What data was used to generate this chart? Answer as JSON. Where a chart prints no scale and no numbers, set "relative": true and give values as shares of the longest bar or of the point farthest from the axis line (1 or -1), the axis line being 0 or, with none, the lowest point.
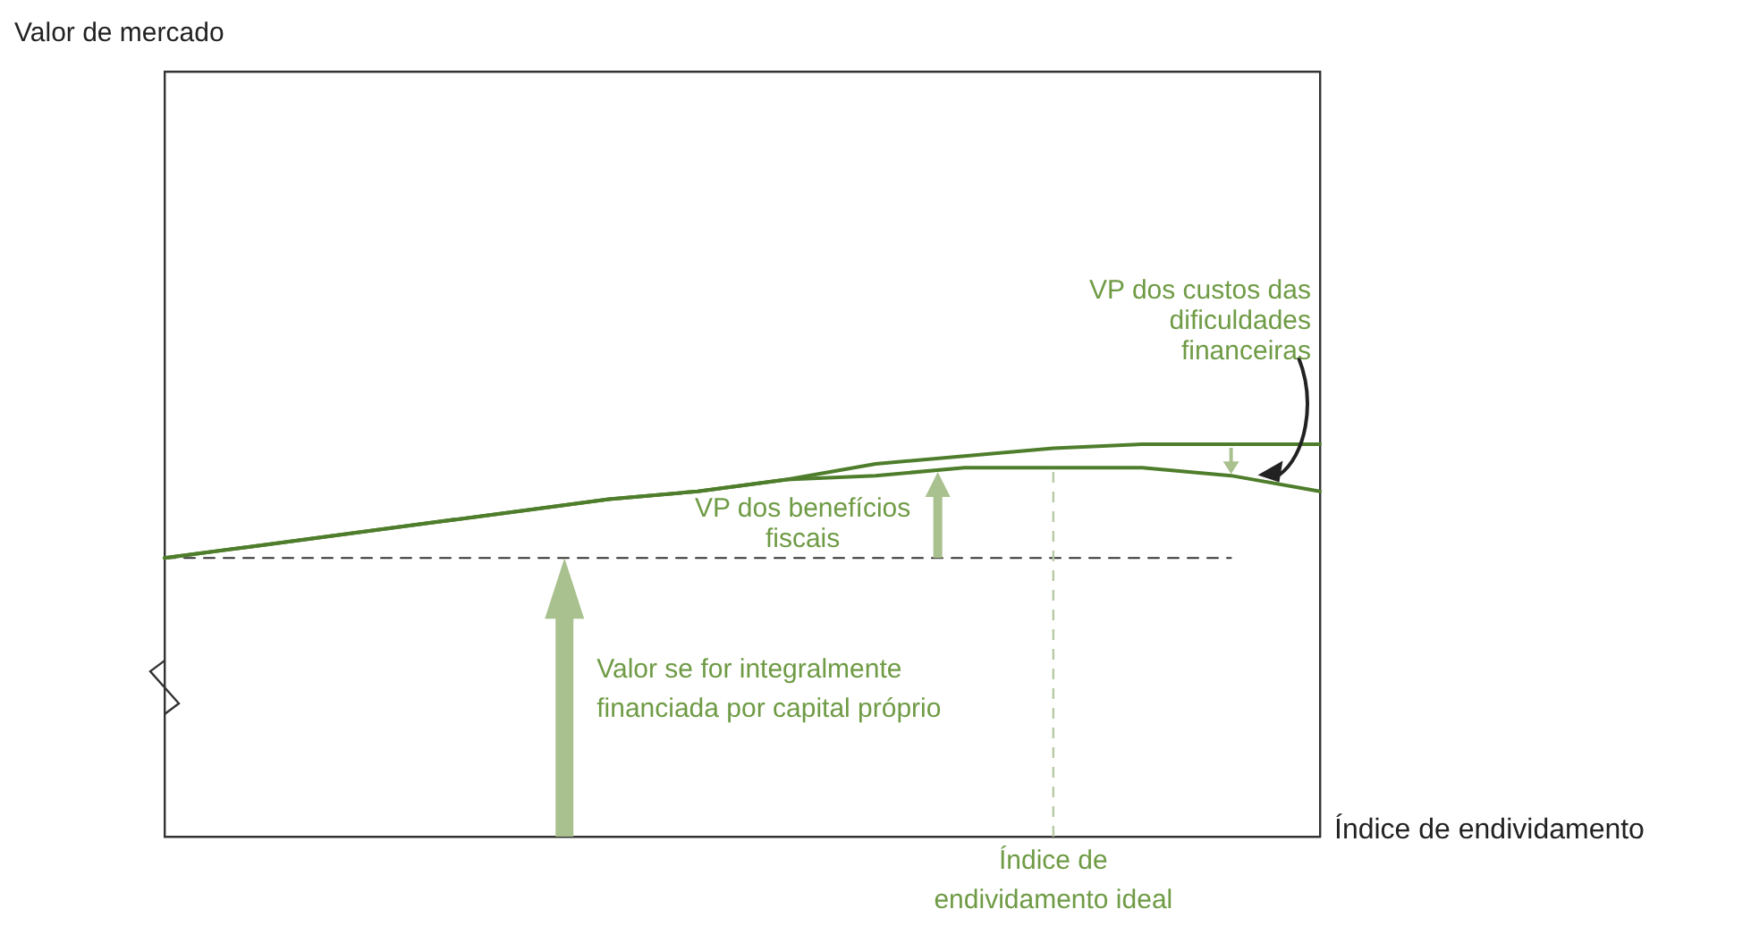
{
  "chart_data": {
    "type": "line",
    "relative": true,
    "xlabel": "Índice de endividamento",
    "categories": [
      null,
      null,
      null,
      null,
      null,
      null,
      null,
      null,
      null,
      null,
      null,
      null,
      null,
      null
    ],
    "series": [
      {
        "color": "#4e7d2b",
        "values": [
          0.71,
          0.74,
          0.77,
          0.8,
          0.83,
          0.86,
          0.88,
          0.91,
          0.95,
          0.97,
          0.99,
          1,
          1,
          1
        ]
      },
      {
        "color": "#4e7d2b",
        "values": [
          0.71,
          0.74,
          0.77,
          0.8,
          0.83,
          0.86,
          0.88,
          0.91,
          0.92,
          0.94,
          0.94,
          0.94,
          0.92,
          0.88
        ]
      },
      {
        "color": "#333333",
        "line_style": "dashed",
        "values": [
          0.71,
          0.71,
          0.71,
          0.71,
          0.71,
          0.71,
          0.71,
          0.71,
          0.71,
          0.71,
          0.71,
          0.71,
          0.71,
          null
        ]
      }
    ],
    "annotations": [
      "VP dos custos das dificuldades financeiras",
      "VP dos benefícios fiscais",
      "Valor se for integralmente financiada por capital próprio",
      "Índice de endividamento ideal",
      "Valor de mercado"
    ],
    "legend": false
  }
}
